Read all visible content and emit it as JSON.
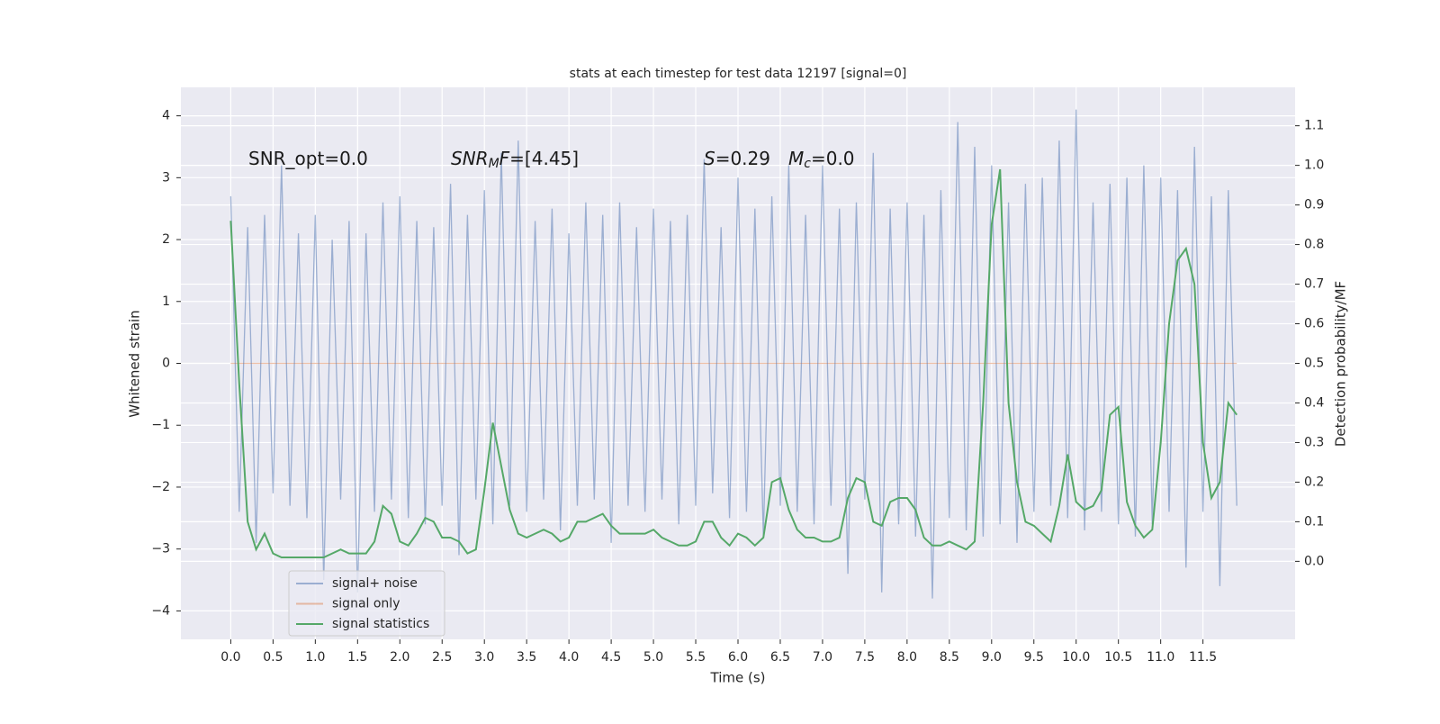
{
  "chart_data": {
    "type": "line",
    "title": "stats at each timestep for test data 12197 [signal=0]",
    "xlabel": "Time (s)",
    "ylabel": "Whitened strain",
    "y2label": "Detection probability/MF",
    "annotations": [
      {
        "segments": [
          {
            "text": "SNR_opt=0.0",
            "style": "normal"
          }
        ]
      },
      {
        "segments": [
          {
            "text": "SNR",
            "style": "italic"
          },
          {
            "text": "M",
            "style": "sub"
          },
          {
            "text": "F",
            "style": "italic"
          },
          {
            "text": "=[4.45]",
            "style": "normal"
          }
        ]
      },
      {
        "segments": [
          {
            "text": "S",
            "style": "italic"
          },
          {
            "text": "=0.29",
            "style": "normal"
          }
        ]
      },
      {
        "segments": [
          {
            "text": "M",
            "style": "italic"
          },
          {
            "text": "c",
            "style": "sub"
          },
          {
            "text": "=0.0",
            "style": "normal"
          }
        ]
      }
    ],
    "x": [
      0,
      0.1,
      0.2,
      0.3,
      0.4,
      0.5,
      0.6,
      0.7,
      0.8,
      0.9,
      1,
      1.1,
      1.2,
      1.3,
      1.4,
      1.5,
      1.6,
      1.7,
      1.8,
      1.9,
      2,
      2.1,
      2.2,
      2.3,
      2.4,
      2.5,
      2.6,
      2.7,
      2.8,
      2.9,
      3,
      3.1,
      3.2,
      3.3,
      3.4,
      3.5,
      3.6,
      3.7,
      3.8,
      3.9,
      4,
      4.1,
      4.2,
      4.3,
      4.4,
      4.5,
      4.6,
      4.7,
      4.8,
      4.9,
      5,
      5.1,
      5.2,
      5.3,
      5.4,
      5.5,
      5.6,
      5.7,
      5.8,
      5.9,
      6,
      6.1,
      6.2,
      6.3,
      6.4,
      6.5,
      6.6,
      6.7,
      6.8,
      6.9,
      7,
      7.1,
      7.2,
      7.3,
      7.4,
      7.5,
      7.6,
      7.7,
      7.8,
      7.9,
      8,
      8.1,
      8.2,
      8.3,
      8.4,
      8.5,
      8.6,
      8.7,
      8.8,
      8.9,
      9,
      9.1,
      9.2,
      9.3,
      9.4,
      9.5,
      9.6,
      9.7,
      9.8,
      9.9,
      10,
      10.1,
      10.2,
      10.3,
      10.4,
      10.5,
      10.6,
      10.7,
      10.8,
      10.9,
      11,
      11.1,
      11.2,
      11.3,
      11.4,
      11.5,
      11.6,
      11.7,
      11.8,
      11.9
    ],
    "series": [
      {
        "name": "signal+ noise",
        "color": "#4c72b0",
        "axis": "y",
        "values": [
          2.7,
          -2.4,
          2.2,
          -2.9,
          2.4,
          -2.1,
          3.2,
          -2.3,
          2.1,
          -2.5,
          2.4,
          -3.5,
          2.0,
          -2.2,
          2.3,
          -3.7,
          2.1,
          -2.4,
          2.6,
          -2.2,
          2.7,
          -2.5,
          2.3,
          -2.6,
          2.2,
          -2.3,
          2.9,
          -3.1,
          2.4,
          -2.2,
          2.8,
          -2.6,
          3.4,
          -2.3,
          3.6,
          -2.4,
          2.3,
          -2.2,
          2.5,
          -2.7,
          2.1,
          -2.3,
          2.6,
          -2.2,
          2.4,
          -2.9,
          2.6,
          -2.3,
          2.2,
          -2.4,
          2.5,
          -2.2,
          2.3,
          -2.6,
          2.4,
          -2.3,
          3.3,
          -2.1,
          2.2,
          -2.5,
          3.0,
          -2.4,
          2.5,
          -2.8,
          2.7,
          -2.3,
          3.2,
          -2.4,
          2.4,
          -2.6,
          3.2,
          -2.3,
          2.5,
          -3.4,
          2.6,
          -2.2,
          3.4,
          -3.7,
          2.5,
          -2.6,
          2.6,
          -2.8,
          2.4,
          -3.8,
          2.8,
          -2.5,
          3.9,
          -2.7,
          3.5,
          -2.8,
          3.2,
          -2.6,
          2.6,
          -2.9,
          2.9,
          -2.4,
          3.0,
          -2.3,
          3.6,
          -2.5,
          4.1,
          -2.7,
          2.6,
          -2.4,
          2.9,
          -2.6,
          3.0,
          -2.8,
          3.2,
          -2.6,
          3.0,
          -2.4,
          2.8,
          -3.3,
          3.5,
          -2.4,
          2.7,
          -3.6,
          2.8,
          -2.3
        ]
      },
      {
        "name": "signal only",
        "color": "#dd8452",
        "axis": "y",
        "values": [
          0,
          0,
          0,
          0,
          0,
          0,
          0,
          0,
          0,
          0,
          0,
          0,
          0,
          0,
          0,
          0,
          0,
          0,
          0,
          0,
          0,
          0,
          0,
          0,
          0,
          0,
          0,
          0,
          0,
          0,
          0,
          0,
          0,
          0,
          0,
          0,
          0,
          0,
          0,
          0,
          0,
          0,
          0,
          0,
          0,
          0,
          0,
          0,
          0,
          0,
          0,
          0,
          0,
          0,
          0,
          0,
          0,
          0,
          0,
          0,
          0,
          0,
          0,
          0,
          0,
          0,
          0,
          0,
          0,
          0,
          0,
          0,
          0,
          0,
          0,
          0,
          0,
          0,
          0,
          0,
          0,
          0,
          0,
          0,
          0,
          0,
          0,
          0,
          0,
          0,
          0,
          0,
          0,
          0,
          0,
          0,
          0,
          0,
          0,
          0,
          0,
          0,
          0,
          0,
          0,
          0,
          0,
          0,
          0,
          0,
          0,
          0,
          0,
          0,
          0,
          0,
          0,
          0,
          0,
          0
        ]
      },
      {
        "name": "signal statistics",
        "color": "#55a868",
        "axis": "y2",
        "values": [
          0.86,
          0.45,
          0.1,
          0.03,
          0.07,
          0.02,
          0.01,
          0.01,
          0.01,
          0.01,
          0.01,
          0.01,
          0.02,
          0.03,
          0.02,
          0.02,
          0.02,
          0.05,
          0.14,
          0.12,
          0.05,
          0.04,
          0.07,
          0.11,
          0.1,
          0.06,
          0.06,
          0.05,
          0.02,
          0.03,
          0.18,
          0.35,
          0.24,
          0.13,
          0.07,
          0.06,
          0.07,
          0.08,
          0.07,
          0.05,
          0.06,
          0.1,
          0.1,
          0.11,
          0.12,
          0.09,
          0.07,
          0.07,
          0.07,
          0.07,
          0.08,
          0.06,
          0.05,
          0.04,
          0.04,
          0.05,
          0.1,
          0.1,
          0.06,
          0.04,
          0.07,
          0.06,
          0.04,
          0.06,
          0.2,
          0.21,
          0.13,
          0.08,
          0.06,
          0.06,
          0.05,
          0.05,
          0.06,
          0.16,
          0.21,
          0.2,
          0.1,
          0.09,
          0.15,
          0.16,
          0.16,
          0.13,
          0.06,
          0.04,
          0.04,
          0.05,
          0.04,
          0.03,
          0.05,
          0.4,
          0.85,
          0.99,
          0.4,
          0.2,
          0.1,
          0.09,
          0.07,
          0.05,
          0.14,
          0.27,
          0.15,
          0.13,
          0.14,
          0.18,
          0.37,
          0.39,
          0.15,
          0.09,
          0.06,
          0.08,
          0.3,
          0.6,
          0.76,
          0.79,
          0.7,
          0.3,
          0.16,
          0.2,
          0.4,
          0.37
        ]
      }
    ],
    "xlim": [
      -0.59,
      12.59
    ],
    "xticks": [
      {
        "value": 0,
        "label": "0.0"
      },
      0.5,
      {
        "value": 1,
        "label": "1.0"
      },
      1.5,
      {
        "value": 2,
        "label": "2.0"
      },
      2.5,
      {
        "value": 3,
        "label": "3.0"
      },
      3.5,
      {
        "value": 4,
        "label": "4.0"
      },
      4.5,
      {
        "value": 5,
        "label": "5.0"
      },
      5.5,
      {
        "value": 6,
        "label": "6.0"
      },
      6.5,
      {
        "value": 7,
        "label": "7.0"
      },
      7.5,
      {
        "value": 8,
        "label": "8.0"
      },
      8.5,
      {
        "value": 9,
        "label": "9.0"
      },
      9.5,
      {
        "value": 10,
        "label": "10.0"
      },
      10.5,
      {
        "value": 11,
        "label": "11.0"
      },
      11.5
    ],
    "ylim": [
      -4.46,
      4.46
    ],
    "yticks": [
      {
        "value": -4,
        "label": "−4"
      },
      {
        "value": -3,
        "label": "−3"
      },
      {
        "value": -2,
        "label": "−2"
      },
      {
        "value": -1,
        "label": "−1"
      },
      0,
      1,
      2,
      3,
      4
    ],
    "y2lim": [
      -0.197,
      1.197
    ],
    "y2ticks": [
      {
        "value": 0,
        "label": "0.0"
      },
      0.1,
      0.2,
      0.3,
      0.4,
      0.5,
      0.6,
      0.7,
      0.8,
      0.9,
      {
        "value": 1,
        "label": "1.0"
      },
      1.1
    ],
    "grid": true,
    "legend_loc": "lower left"
  }
}
